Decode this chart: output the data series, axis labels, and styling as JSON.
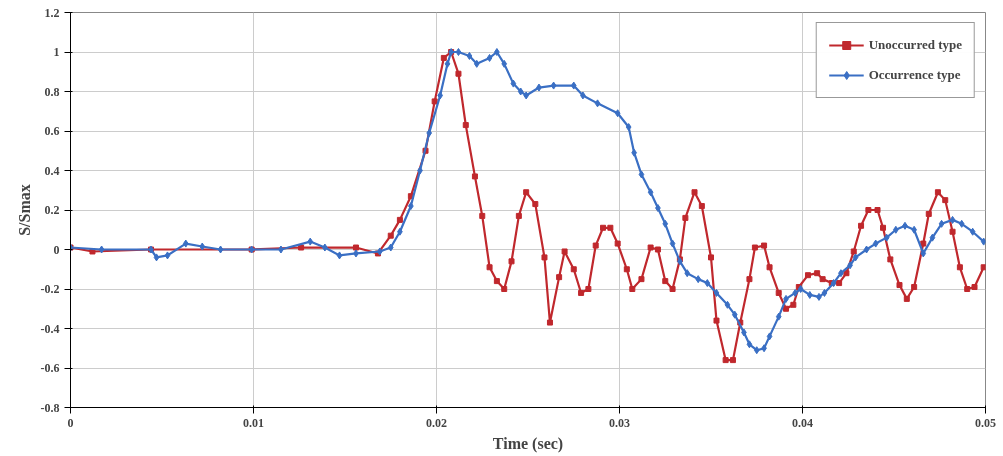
{
  "chart_data": {
    "type": "line",
    "xlabel": "Time (sec)",
    "ylabel": "S/Smax",
    "xlim": [
      0,
      0.05
    ],
    "ylim": [
      -0.8,
      1.2
    ],
    "xticks": [
      0,
      0.01,
      0.02,
      0.03,
      0.04,
      0.05
    ],
    "yticks": [
      -0.8,
      -0.6,
      -0.4,
      -0.2,
      0,
      0.2,
      0.4,
      0.6,
      0.8,
      1,
      1.2
    ],
    "grid": true,
    "legend": "top right",
    "line_style": "solid",
    "series": [
      {
        "name": "Unoccurred type",
        "color": "#c0282d",
        "marker": "square",
        "x": [
          0,
          0.0012,
          0.0044,
          0.0099,
          0.0126,
          0.0156,
          0.0168,
          0.0175,
          0.018,
          0.0186,
          0.0194,
          0.0199,
          0.0204,
          0.0208,
          0.0212,
          0.0216,
          0.0221,
          0.0225,
          0.0229,
          0.0233,
          0.0237,
          0.0241,
          0.0245,
          0.0249,
          0.0254,
          0.0259,
          0.0262,
          0.0267,
          0.027,
          0.0275,
          0.0279,
          0.0283,
          0.0287,
          0.0291,
          0.0295,
          0.0299,
          0.0304,
          0.0307,
          0.0312,
          0.0317,
          0.0321,
          0.0325,
          0.0329,
          0.0333,
          0.0336,
          0.0341,
          0.0345,
          0.035,
          0.0353,
          0.0358,
          0.0362,
          0.0366,
          0.0371,
          0.0374,
          0.0379,
          0.0382,
          0.0387,
          0.0391,
          0.0395,
          0.0398,
          0.0403,
          0.0408,
          0.0411,
          0.0416,
          0.042,
          0.0424,
          0.0428,
          0.0432,
          0.0436,
          0.0441,
          0.0444,
          0.0448,
          0.0453,
          0.0457,
          0.0461,
          0.0466,
          0.0469,
          0.0474,
          0.0478,
          0.0482,
          0.0486,
          0.049,
          0.0494,
          0.0499
        ],
        "values": [
          0.01,
          -0.01,
          0,
          0,
          0.01,
          0.01,
          -0.02,
          0.07,
          0.15,
          0.27,
          0.5,
          0.75,
          0.97,
          1.0,
          0.89,
          0.63,
          0.37,
          0.17,
          -0.09,
          -0.16,
          -0.2,
          -0.06,
          0.17,
          0.29,
          0.23,
          -0.04,
          -0.37,
          -0.14,
          -0.01,
          -0.1,
          -0.22,
          -0.2,
          0.02,
          0.11,
          0.11,
          0.03,
          -0.1,
          -0.2,
          -0.15,
          0.01,
          0,
          -0.16,
          -0.2,
          -0.05,
          0.16,
          0.29,
          0.22,
          -0.04,
          -0.36,
          -0.56,
          -0.56,
          -0.37,
          -0.15,
          0.01,
          0.02,
          -0.09,
          -0.22,
          -0.3,
          -0.28,
          -0.19,
          -0.13,
          -0.12,
          -0.15,
          -0.17,
          -0.17,
          -0.12,
          -0.01,
          0.12,
          0.2,
          0.2,
          0.11,
          -0.05,
          -0.18,
          -0.25,
          -0.19,
          0.03,
          0.18,
          0.29,
          0.25,
          0.09,
          -0.09,
          -0.2,
          -0.19,
          -0.09
        ]
      },
      {
        "name": "Occurrence type",
        "color": "#3a6fc4",
        "marker": "diamond",
        "x": [
          0,
          0.0017,
          0.0044,
          0.0047,
          0.0053,
          0.0063,
          0.0072,
          0.0082,
          0.0099,
          0.0115,
          0.0131,
          0.0139,
          0.0147,
          0.0156,
          0.0169,
          0.0175,
          0.018,
          0.0186,
          0.0191,
          0.0196,
          0.0202,
          0.0206,
          0.0208,
          0.0212,
          0.0218,
          0.0222,
          0.0229,
          0.0233,
          0.0237,
          0.0242,
          0.0246,
          0.0249,
          0.0256,
          0.0264,
          0.0275,
          0.028,
          0.0288,
          0.0299,
          0.0305,
          0.0308,
          0.0312,
          0.0317,
          0.0321,
          0.0325,
          0.0329,
          0.0333,
          0.0337,
          0.0343,
          0.0348,
          0.0353,
          0.0359,
          0.0363,
          0.0368,
          0.0371,
          0.0375,
          0.0379,
          0.0382,
          0.0387,
          0.0391,
          0.0396,
          0.0399,
          0.0404,
          0.0409,
          0.0412,
          0.0417,
          0.0421,
          0.0426,
          0.0429,
          0.0435,
          0.044,
          0.0446,
          0.0451,
          0.0456,
          0.0461,
          0.0466,
          0.0471,
          0.0476,
          0.0482,
          0.0487,
          0.0493,
          0.0499
        ],
        "values": [
          0.01,
          0,
          0,
          -0.04,
          -0.03,
          0.03,
          0.015,
          0,
          0,
          0,
          0.04,
          0.01,
          -0.03,
          -0.02,
          -0.01,
          0.01,
          0.09,
          0.22,
          0.4,
          0.59,
          0.78,
          0.94,
          1.0,
          1.0,
          0.98,
          0.94,
          0.97,
          1.0,
          0.94,
          0.84,
          0.8,
          0.78,
          0.82,
          0.83,
          0.83,
          0.78,
          0.74,
          0.69,
          0.62,
          0.49,
          0.38,
          0.29,
          0.21,
          0.13,
          0.03,
          -0.06,
          -0.12,
          -0.15,
          -0.17,
          -0.22,
          -0.28,
          -0.33,
          -0.42,
          -0.48,
          -0.51,
          -0.5,
          -0.44,
          -0.34,
          -0.25,
          -0.22,
          -0.2,
          -0.23,
          -0.24,
          -0.22,
          -0.17,
          -0.12,
          -0.08,
          -0.04,
          0,
          0.03,
          0.06,
          0.1,
          0.12,
          0.1,
          -0.02,
          0.06,
          0.13,
          0.15,
          0.13,
          0.09,
          0.04
        ]
      }
    ]
  }
}
